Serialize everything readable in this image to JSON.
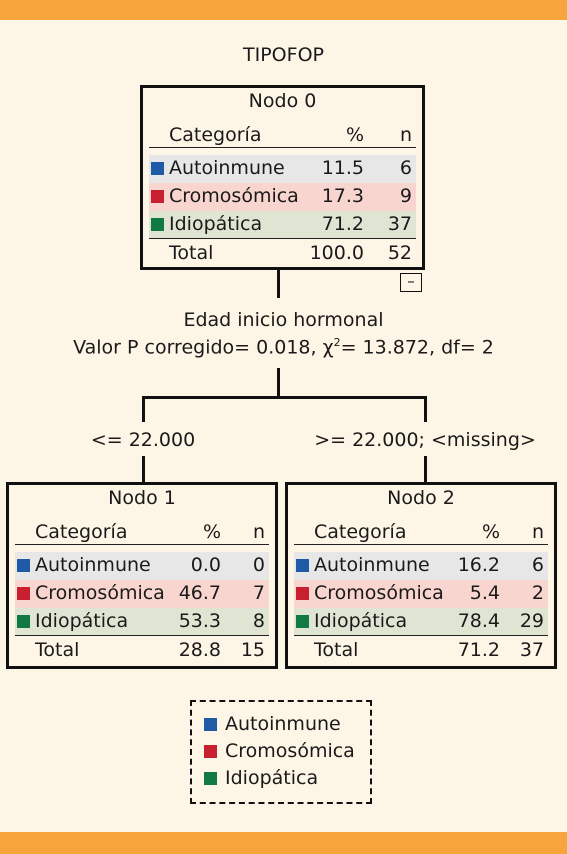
{
  "title": "TIPOFOP",
  "colors": {
    "header_bar": "#f6a53c",
    "background": "#fdf5e6",
    "autoinmune": "#1f5aa6",
    "cromosomica": "#c8202e",
    "idiopatica": "#117a44",
    "row_gray": "#e7e7e7",
    "row_pink": "#f8d6cf",
    "row_green": "#e0e5d3"
  },
  "columns": {
    "category": "Categoría",
    "pct": "%",
    "n": "n"
  },
  "total_label": "Total",
  "nodes": [
    {
      "title": "Nodo 0",
      "rows": [
        {
          "category": "Autoinmune",
          "pct": "11.5",
          "n": "6"
        },
        {
          "category": "Cromosómica",
          "pct": "17.3",
          "n": "9"
        },
        {
          "category": "Idiopática",
          "pct": "71.2",
          "n": "37"
        }
      ],
      "total": {
        "pct": "100.0",
        "n": "52"
      },
      "collapse_symbol": "–"
    },
    {
      "title": "Nodo 1",
      "rows": [
        {
          "category": "Autoinmune",
          "pct": "0.0",
          "n": "0"
        },
        {
          "category": "Cromosómica",
          "pct": "46.7",
          "n": "7"
        },
        {
          "category": "Idiopática",
          "pct": "53.3",
          "n": "8"
        }
      ],
      "total": {
        "pct": "28.8",
        "n": "15"
      }
    },
    {
      "title": "Nodo 2",
      "rows": [
        {
          "category": "Autoinmune",
          "pct": "16.2",
          "n": "6"
        },
        {
          "category": "Cromosómica",
          "pct": "5.4",
          "n": "2"
        },
        {
          "category": "Idiopática",
          "pct": "78.4",
          "n": "29"
        }
      ],
      "total": {
        "pct": "71.2",
        "n": "37"
      }
    }
  ],
  "split": {
    "variable": "Edad inicio hormonal",
    "stats_prefix": "Valor P corregido= 0.018, χ",
    "stats_sup": "2",
    "stats_suffix": "= 13.872, df= 2"
  },
  "branches": {
    "left": "<= 22.000",
    "right": ">= 22.000; <missing>"
  },
  "legend": [
    "Autoinmune",
    "Cromosómica",
    "Idiopática"
  ]
}
